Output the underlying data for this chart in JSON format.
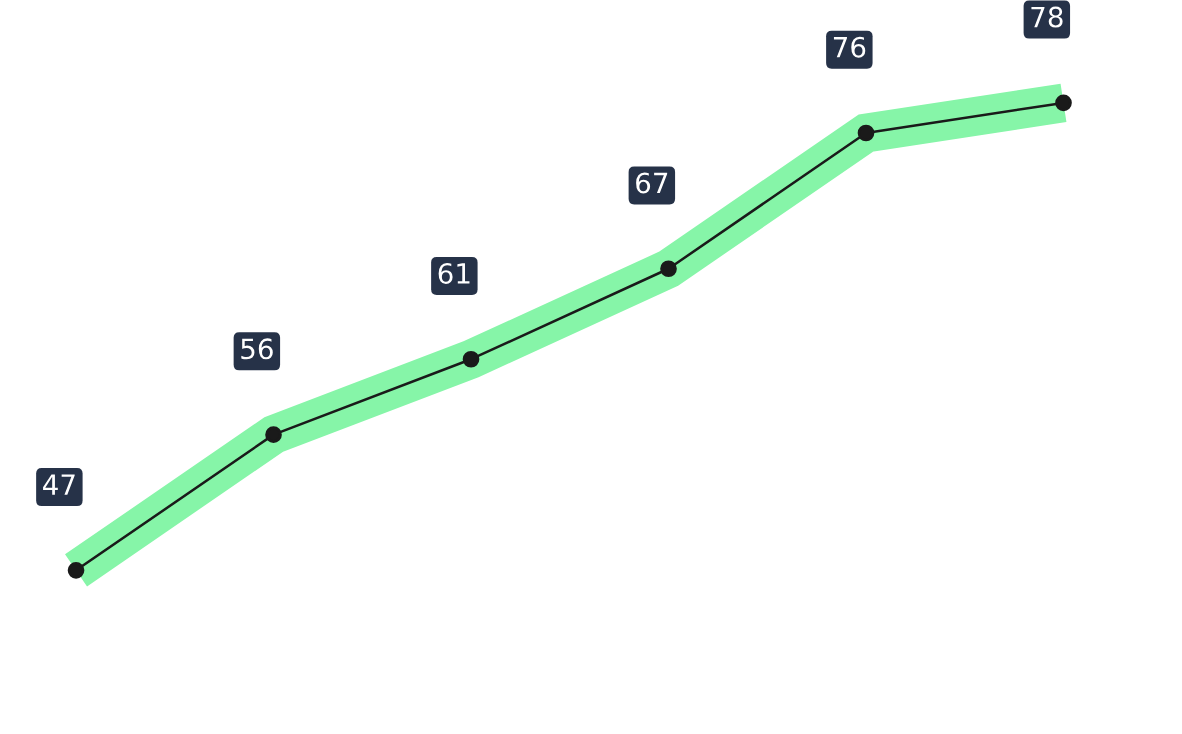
{
  "chart_data": {
    "type": "line",
    "categories": [
      null,
      null,
      null,
      null,
      null,
      null
    ],
    "series": [
      {
        "color": "#1a1a1a",
        "values": [
          47,
          56,
          61,
          67,
          76,
          78
        ]
      }
    ],
    "data_labels": true,
    "marker": "circle",
    "line_style": "solid",
    "grid": false,
    "legend": false
  }
}
